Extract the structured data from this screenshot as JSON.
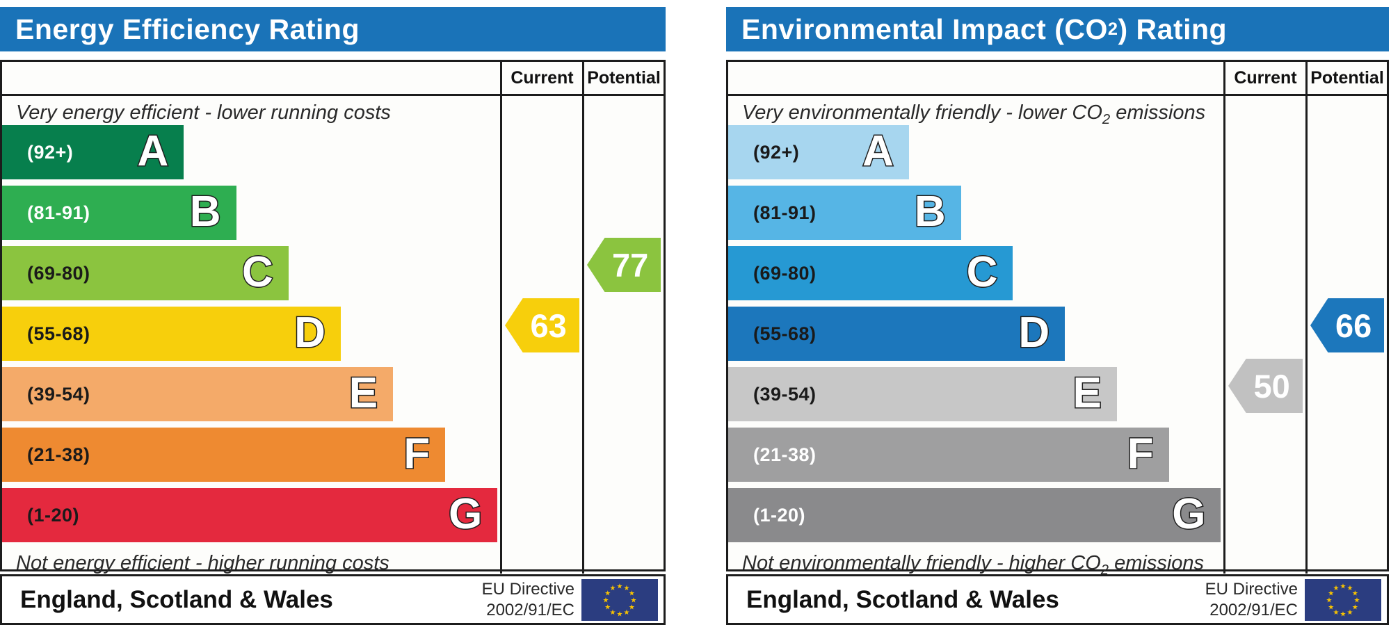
{
  "chart_data": [
    {
      "type": "bar",
      "title": "Energy Efficiency Rating",
      "categories": [
        "A (92+)",
        "B (81-91)",
        "C (69-80)",
        "D (55-68)",
        "E (39-54)",
        "F (21-38)",
        "G (1-20)"
      ],
      "values": [
        36.5,
        47,
        57.5,
        68,
        78.5,
        89,
        99.5
      ],
      "current": 63,
      "current_band": "D",
      "potential": 77,
      "potential_band": "C",
      "xlabel": "",
      "ylabel": "",
      "legend": [
        "Current",
        "Potential"
      ],
      "annotations": [
        "Very energy efficient - lower running costs",
        "Not energy efficient - higher running costs"
      ]
    },
    {
      "type": "bar",
      "title": "Environmental Impact (CO2) Rating",
      "categories": [
        "A (92+)",
        "B (81-91)",
        "C (69-80)",
        "D (55-68)",
        "E (39-54)",
        "F (21-38)",
        "G (1-20)"
      ],
      "values": [
        36.5,
        47,
        57.5,
        68,
        78.5,
        89,
        99.5
      ],
      "current": 50,
      "current_band": "E",
      "potential": 66,
      "potential_band": "D",
      "xlabel": "",
      "ylabel": "",
      "legend": [
        "Current",
        "Potential"
      ],
      "annotations": [
        "Very environmentally friendly - lower CO2 emissions",
        "Not environmentally friendly - higher CO2 emissions"
      ]
    }
  ],
  "panels": [
    {
      "title": {
        "pre": "Energy Efficiency Rating",
        "sub": "",
        "post": ""
      },
      "header": {
        "current": "Current",
        "potential": "Potential"
      },
      "caption_top": {
        "pre": "Very energy efficient - lower running costs",
        "sub": "",
        "post": ""
      },
      "caption_bottom": {
        "pre": "Not energy efficient - higher running costs",
        "sub": "",
        "post": ""
      },
      "bands": [
        {
          "letter": "A",
          "range": "(92+)",
          "color": "#077f4d",
          "label_color": "#ffffff",
          "width_pct": 36.5
        },
        {
          "letter": "B",
          "range": "(81-91)",
          "color": "#2eae51",
          "label_color": "#ffffff",
          "width_pct": 47
        },
        {
          "letter": "C",
          "range": "(69-80)",
          "color": "#8bc43f",
          "label_color": "#1a1a1a",
          "width_pct": 57.5
        },
        {
          "letter": "D",
          "range": "(55-68)",
          "color": "#f7cf0c",
          "label_color": "#1a1a1a",
          "width_pct": 68
        },
        {
          "letter": "E",
          "range": "(39-54)",
          "color": "#f4aa69",
          "label_color": "#1a1a1a",
          "width_pct": 78.5
        },
        {
          "letter": "F",
          "range": "(21-38)",
          "color": "#ee8a31",
          "label_color": "#1a1a1a",
          "width_pct": 89
        },
        {
          "letter": "G",
          "range": "(1-20)",
          "color": "#e4293e",
          "label_color": "#1a1a1a",
          "width_pct": 99.5
        }
      ],
      "current": {
        "value": "63",
        "band_index": 3,
        "color": "#f7cf0c",
        "text_color": "#ffffff"
      },
      "potential": {
        "value": "77",
        "band_index": 2,
        "color": "#8bc43f",
        "text_color": "#ffffff"
      },
      "footer": {
        "region": "England, Scotland & Wales",
        "directive_line1": "EU Directive",
        "directive_line2": "2002/91/EC",
        "flag_color": "#2b3d80",
        "star_color": "#f8c301"
      }
    },
    {
      "title": {
        "pre": "Environmental Impact (CO",
        "sub": "2",
        "post": ") Rating"
      },
      "header": {
        "current": "Current",
        "potential": "Potential"
      },
      "caption_top": {
        "pre": "Very environmentally friendly - lower CO",
        "sub": "2",
        "post": " emissions"
      },
      "caption_bottom": {
        "pre": "Not environmentally friendly - higher CO",
        "sub": "2",
        "post": " emissions"
      },
      "bands": [
        {
          "letter": "A",
          "range": "(92+)",
          "color": "#a7d6ef",
          "label_color": "#1a1a1a",
          "width_pct": 36.5
        },
        {
          "letter": "B",
          "range": "(81-91)",
          "color": "#56b5e5",
          "label_color": "#1a1a1a",
          "width_pct": 47
        },
        {
          "letter": "C",
          "range": "(69-80)",
          "color": "#2699d3",
          "label_color": "#1a1a1a",
          "width_pct": 57.5
        },
        {
          "letter": "D",
          "range": "(55-68)",
          "color": "#1c77bc",
          "label_color": "#1a1a1a",
          "width_pct": 68
        },
        {
          "letter": "E",
          "range": "(39-54)",
          "color": "#c7c7c7",
          "label_color": "#1a1a1a",
          "width_pct": 78.5
        },
        {
          "letter": "F",
          "range": "(21-38)",
          "color": "#9f9fa0",
          "label_color": "#ffffff",
          "width_pct": 89
        },
        {
          "letter": "G",
          "range": "(1-20)",
          "color": "#8a8a8c",
          "label_color": "#ffffff",
          "width_pct": 99.5
        }
      ],
      "current": {
        "value": "50",
        "band_index": 4,
        "color": "#c1c1c1",
        "text_color": "#ffffff"
      },
      "potential": {
        "value": "66",
        "band_index": 3,
        "color": "#1c77bc",
        "text_color": "#ffffff"
      },
      "footer": {
        "region": "England, Scotland & Wales",
        "directive_line1": "EU Directive",
        "directive_line2": "2002/91/EC",
        "flag_color": "#2b3d80",
        "star_color": "#f8c301"
      }
    }
  ]
}
